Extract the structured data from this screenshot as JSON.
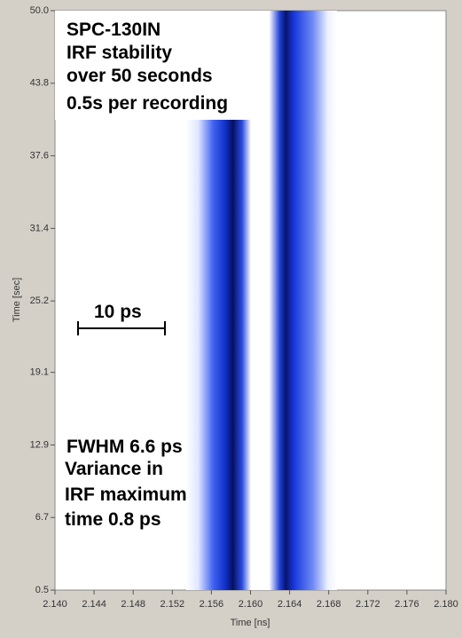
{
  "chart_data": {
    "type": "heatmap",
    "annotations": [
      "SPC-130IN",
      "IRF stability",
      "over 50 seconds",
      "0.5s per recording",
      "10 ps",
      "FWHM 6.6 ps",
      "Variance in",
      "IRF maximum",
      "time 0.8 ps"
    ],
    "x_label": "Time [ns]",
    "y_label": "Time [sec]",
    "xlim": [
      2.14,
      2.18
    ],
    "xticks": [
      {
        "value": 2.14,
        "label": "2.140"
      },
      2.144,
      2.148,
      2.152,
      2.156,
      {
        "value": 2.16,
        "label": "2.160"
      },
      2.164,
      2.168,
      2.172,
      2.176,
      {
        "value": 2.18,
        "label": "2.180"
      }
    ],
    "ylim": [
      0.5,
      50
    ],
    "yticks": [
      0.5,
      6.7,
      12.9,
      19.1,
      25.2,
      31.4,
      37.6,
      43.8,
      {
        "value": 50,
        "label": "50.0"
      }
    ]
  }
}
